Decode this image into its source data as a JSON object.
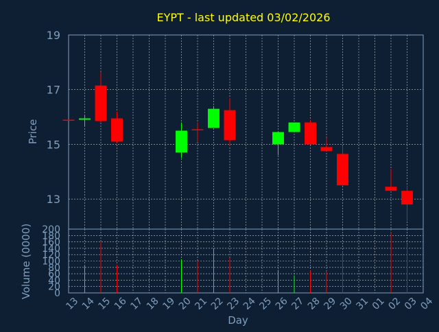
{
  "chart_data": {
    "type": "candlestick",
    "title": "EYPT - last updated 03/02/2026",
    "xlabel": "Day",
    "ylabel": "Price",
    "volume_ylabel": "Volume (0000)",
    "x_ticks": [
      "13",
      "14",
      "15",
      "16",
      "17",
      "18",
      "19",
      "20",
      "21",
      "22",
      "23",
      "24",
      "25",
      "26",
      "27",
      "28",
      "29",
      "30",
      "31",
      "01",
      "02",
      "03",
      "04"
    ],
    "price_ylim": [
      11.9,
      19
    ],
    "price_ticks": [
      "13",
      "15",
      "17",
      "19"
    ],
    "volume_ylim": [
      0,
      200
    ],
    "volume_ticks": [
      "0",
      "20",
      "40",
      "60",
      "80",
      "100",
      "120",
      "140",
      "160",
      "180",
      "200"
    ],
    "grid": true,
    "colors": {
      "background": "#0f1f33",
      "title": "#ffff00",
      "axis_text": "#7f9fbf",
      "grid": "#ffffff",
      "up": "#00ff00",
      "down": "#ff0000"
    },
    "candles": [
      {
        "day": "13",
        "open": 15.9,
        "high": 15.9,
        "low": 15.9,
        "close": 15.9,
        "volume": 0
      },
      {
        "day": "14",
        "open": 15.9,
        "high": 16.05,
        "low": 15.65,
        "close": 15.95,
        "volume": 85
      },
      {
        "day": "15",
        "open": 17.15,
        "high": 17.65,
        "low": 15.8,
        "close": 15.85,
        "volume": 160
      },
      {
        "day": "16",
        "open": 15.95,
        "high": 16.2,
        "low": 15.05,
        "close": 15.1,
        "volume": 88
      },
      {
        "day": "20",
        "open": 14.7,
        "high": 15.8,
        "low": 14.5,
        "close": 15.5,
        "volume": 105
      },
      {
        "day": "21",
        "open": 15.55,
        "high": 15.8,
        "low": 15.1,
        "close": 15.55,
        "volume": 100
      },
      {
        "day": "22",
        "open": 15.6,
        "high": 16.4,
        "low": 15.6,
        "close": 16.3,
        "volume": 140
      },
      {
        "day": "23",
        "open": 16.25,
        "high": 16.7,
        "low": 14.95,
        "close": 15.15,
        "volume": 110
      },
      {
        "day": "26",
        "open": 15.0,
        "high": 15.45,
        "low": 14.6,
        "close": 15.45,
        "volume": 72
      },
      {
        "day": "27",
        "open": 15.45,
        "high": 15.8,
        "low": 15.45,
        "close": 15.8,
        "volume": 55
      },
      {
        "day": "28",
        "open": 15.8,
        "high": 15.9,
        "low": 15.0,
        "close": 15.0,
        "volume": 70
      },
      {
        "day": "29",
        "open": 14.9,
        "high": 15.25,
        "low": 14.75,
        "close": 14.75,
        "volume": 68
      },
      {
        "day": "30",
        "open": 14.65,
        "high": 14.95,
        "low": 13.5,
        "close": 13.5,
        "volume": 130
      },
      {
        "day": "02",
        "open": 13.45,
        "high": 14.1,
        "low": 13.3,
        "close": 13.3,
        "volume": 190
      },
      {
        "day": "03",
        "open": 13.3,
        "high": 13.5,
        "low": 12.2,
        "close": 12.8,
        "volume": 155
      }
    ]
  }
}
